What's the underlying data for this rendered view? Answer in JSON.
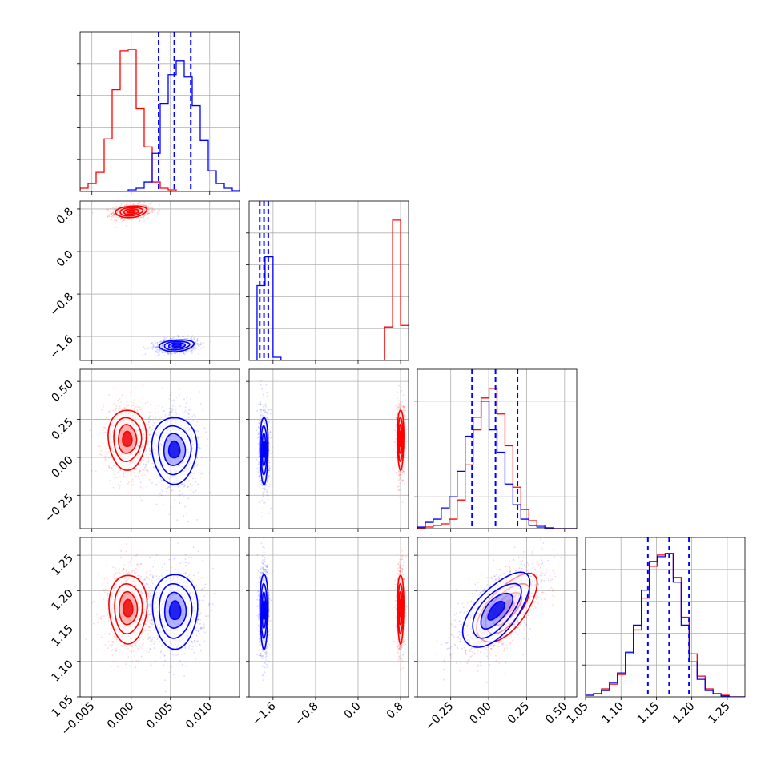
{
  "chart_data": {
    "type": "corner",
    "description_series": [
      "red",
      "blue"
    ],
    "series": [
      {
        "color": "#ff0000"
      },
      {
        "color": "#0000ff"
      }
    ],
    "grid": true,
    "parameters": [
      {
        "range": [
          -0.0065,
          0.0138
        ],
        "ticks": [
          -0.005,
          0.0,
          0.005,
          0.01
        ],
        "tick_labels": [
          "−0.005",
          "0.000",
          "0.005",
          "0.010"
        ]
      },
      {
        "range": [
          -2.05,
          0.95
        ],
        "ticks": [
          -1.6,
          -0.8,
          0.0,
          0.8
        ],
        "tick_labels": [
          "−1.6",
          "−0.8",
          "0.0",
          "0.8"
        ]
      },
      {
        "range": [
          -0.47,
          0.58
        ],
        "ticks": [
          -0.25,
          0.0,
          0.25,
          0.5
        ],
        "tick_labels": [
          "−0.25",
          "0.00",
          "0.25",
          "0.50"
        ]
      },
      {
        "range": [
          1.05,
          1.275
        ],
        "ticks": [
          1.05,
          1.1,
          1.15,
          1.2,
          1.25
        ],
        "tick_labels": [
          "1.05",
          "1.10",
          "1.15",
          "1.20",
          "1.25"
        ]
      }
    ],
    "marginals": [
      {
        "param": 0,
        "quantile_lines_blue": [
          0.0035,
          0.0055,
          0.0076
        ],
        "red_hist": {
          "edges_start": -0.0065,
          "bin_width": 0.00102,
          "values": [
            0.02,
            0.05,
            0.12,
            0.33,
            0.64,
            0.88,
            0.89,
            0.52,
            0.28,
            0.06,
            0.02,
            0.01,
            0,
            0,
            0,
            0,
            0,
            0,
            0,
            0
          ]
        },
        "blue_hist": {
          "edges_start": -0.0065,
          "bin_width": 0.00102,
          "values": [
            0,
            0,
            0,
            0,
            0,
            0,
            0.01,
            0.02,
            0.06,
            0.24,
            0.55,
            0.73,
            0.82,
            0.72,
            0.54,
            0.32,
            0.13,
            0.05,
            0.02,
            0.005
          ]
        }
      },
      {
        "param": 1,
        "quantile_lines_blue": [
          -1.85,
          -1.77,
          -1.69
        ],
        "red_hist": {
          "edges_start": -2.05,
          "bin_width": 0.15,
          "values": [
            0,
            0,
            0,
            0,
            0,
            0,
            0,
            0,
            0,
            0,
            0,
            0,
            0,
            0,
            0,
            0,
            0,
            0.21,
            0.88,
            0.22
          ]
        },
        "blue_hist": {
          "edges_start": -2.05,
          "bin_width": 0.15,
          "values": [
            0,
            0.47,
            0.65,
            0.02,
            0,
            0,
            0,
            0,
            0,
            0,
            0,
            0,
            0,
            0,
            0,
            0,
            0,
            0,
            0,
            0
          ]
        }
      },
      {
        "param": 2,
        "quantile_lines_blue": [
          -0.11,
          0.045,
          0.19
        ],
        "red_hist": {
          "edges_start": -0.47,
          "bin_width": 0.0525,
          "values": [
            0.005,
            0.01,
            0.02,
            0.03,
            0.06,
            0.18,
            0.4,
            0.62,
            0.82,
            0.88,
            0.72,
            0.52,
            0.26,
            0.12,
            0.05,
            0.02,
            0.005,
            0,
            0,
            0
          ]
        },
        "blue_hist": {
          "edges_start": -0.47,
          "bin_width": 0.0525,
          "values": [
            0.01,
            0.04,
            0.06,
            0.13,
            0.2,
            0.36,
            0.58,
            0.7,
            0.8,
            0.62,
            0.48,
            0.28,
            0.15,
            0.06,
            0.02,
            0.01,
            0.005,
            0,
            0,
            0
          ]
        }
      },
      {
        "param": 3,
        "quantile_lines_blue": [
          1.138,
          1.168,
          1.196
        ],
        "red_hist": {
          "edges_start": 1.05,
          "bin_width": 0.01125,
          "values": [
            0.01,
            0.02,
            0.05,
            0.08,
            0.14,
            0.27,
            0.42,
            0.62,
            0.82,
            0.89,
            0.9,
            0.75,
            0.5,
            0.27,
            0.13,
            0.05,
            0.02,
            0.01,
            0,
            0
          ]
        },
        "blue_hist": {
          "edges_start": 1.05,
          "bin_width": 0.01125,
          "values": [
            0.01,
            0.02,
            0.04,
            0.09,
            0.15,
            0.28,
            0.45,
            0.67,
            0.85,
            0.88,
            0.9,
            0.72,
            0.45,
            0.22,
            0.11,
            0.04,
            0.02,
            0.005,
            0,
            0
          ]
        }
      }
    ],
    "pairs": [
      {
        "x": 0,
        "y": 1,
        "red": {
          "mean": [
            0.0,
            0.75
          ],
          "sd": [
            0.0009,
            0.05
          ],
          "rho": 0.2
        },
        "blue": {
          "mean": [
            0.0058,
            -1.77
          ],
          "sd": [
            0.001,
            0.05
          ],
          "rho": 0.2
        }
      },
      {
        "x": 0,
        "y": 2,
        "red": {
          "mean": [
            -0.0005,
            0.12
          ],
          "sd": [
            0.0011,
            0.09
          ],
          "rho": 0.0
        },
        "blue": {
          "mean": [
            0.0055,
            0.05
          ],
          "sd": [
            0.0013,
            0.1
          ],
          "rho": 0.0
        }
      },
      {
        "x": 0,
        "y": 3,
        "red": {
          "mean": [
            -0.0004,
            1.175
          ],
          "sd": [
            0.0011,
            0.022
          ],
          "rho": 0.0
        },
        "blue": {
          "mean": [
            0.0056,
            1.172
          ],
          "sd": [
            0.0013,
            0.024
          ],
          "rho": 0.0
        }
      },
      {
        "x": 1,
        "y": 2,
        "red": {
          "mean": [
            0.8,
            0.12
          ],
          "sd": [
            0.028,
            0.09
          ],
          "rho": 0.0
        },
        "blue": {
          "mean": [
            -1.77,
            0.05
          ],
          "sd": [
            0.035,
            0.1
          ],
          "rho": 0.0
        }
      },
      {
        "x": 1,
        "y": 3,
        "red": {
          "mean": [
            0.8,
            1.175
          ],
          "sd": [
            0.028,
            0.022
          ],
          "rho": 0.0
        },
        "blue": {
          "mean": [
            -1.77,
            1.172
          ],
          "sd": [
            0.035,
            0.024
          ],
          "rho": 0.0
        }
      },
      {
        "x": 2,
        "y": 3,
        "red": {
          "mean": [
            0.12,
            1.175
          ],
          "sd": [
            0.09,
            0.022
          ],
          "rho": 0.65
        },
        "blue": {
          "mean": [
            0.05,
            1.172
          ],
          "sd": [
            0.1,
            0.024
          ],
          "rho": 0.65
        }
      }
    ]
  }
}
